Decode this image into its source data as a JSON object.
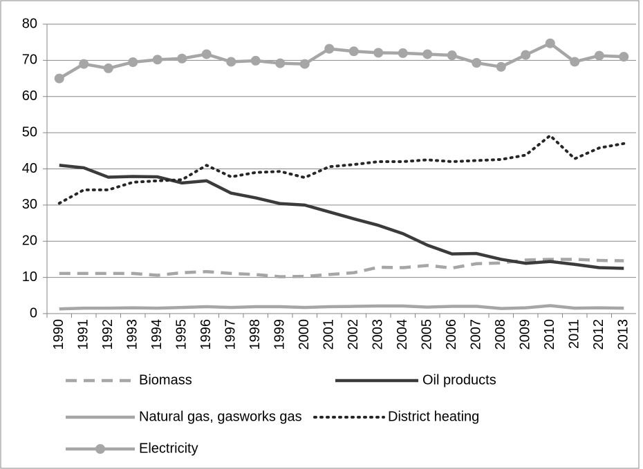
{
  "chart_data": {
    "type": "line",
    "categories": [
      "1990",
      "1991",
      "1992",
      "1993",
      "1994",
      "1995",
      "1996",
      "1997",
      "1998",
      "1999",
      "2000",
      "2001",
      "2002",
      "2003",
      "2004",
      "2005",
      "2006",
      "2007",
      "2008",
      "2009",
      "2010",
      "2011",
      "2012",
      "2013"
    ],
    "series": [
      {
        "name": "Biomass",
        "color": "#a6a6a6",
        "line_style": "dashed",
        "values": [
          11.1,
          11.1,
          11.1,
          11.1,
          10.6,
          11.3,
          11.6,
          11.1,
          10.8,
          10.2,
          10.3,
          10.8,
          11.3,
          12.8,
          12.7,
          13.3,
          12.6,
          13.8,
          14,
          14.8,
          15,
          15,
          14.7,
          14.6
        ]
      },
      {
        "name": "Oil products",
        "color": "#3b3b3b",
        "line_style": "solid",
        "values": [
          41,
          40.3,
          37.7,
          37.9,
          37.8,
          36.1,
          36.7,
          33.3,
          32,
          30.4,
          30,
          28.1,
          26.2,
          24.4,
          22.1,
          18.9,
          16.5,
          16.6,
          15,
          13.9,
          14.4,
          13.6,
          12.7,
          12.5
        ]
      },
      {
        "name": "Natural gas, gasworks gas",
        "color": "#a6a6a6",
        "line_style": "solid",
        "values": [
          1.3,
          1.5,
          1.5,
          1.6,
          1.5,
          1.7,
          1.9,
          1.7,
          1.9,
          1.9,
          1.7,
          1.9,
          2,
          2.1,
          2.1,
          1.8,
          2,
          2,
          1.4,
          1.6,
          2.2,
          1.5,
          1.6,
          1.5
        ]
      },
      {
        "name": "District heating",
        "color": "#262626",
        "line_style": "dotted",
        "values": [
          30.5,
          34.2,
          34.2,
          36.3,
          36.7,
          37,
          41,
          37.8,
          39,
          39.3,
          37.6,
          40.6,
          41.2,
          42,
          42,
          42.5,
          42,
          42.3,
          42.6,
          43.8,
          49.2,
          42.8,
          45.8,
          47
        ]
      },
      {
        "name": "Electricity",
        "color": "#a6a6a6",
        "line_style": "solid",
        "marker": "circle",
        "values": [
          65,
          69,
          67.8,
          69.5,
          70.2,
          70.5,
          71.7,
          69.6,
          69.9,
          69.2,
          69,
          73.2,
          72.5,
          72.1,
          72,
          71.7,
          71.4,
          69.3,
          68.2,
          71.5,
          74.7,
          69.6,
          71.3,
          71
        ]
      }
    ],
    "ylim": [
      0,
      80
    ],
    "yticks": [
      0,
      10,
      20,
      30,
      40,
      50,
      60,
      70,
      80
    ],
    "grid": true,
    "legend": "bottom"
  }
}
